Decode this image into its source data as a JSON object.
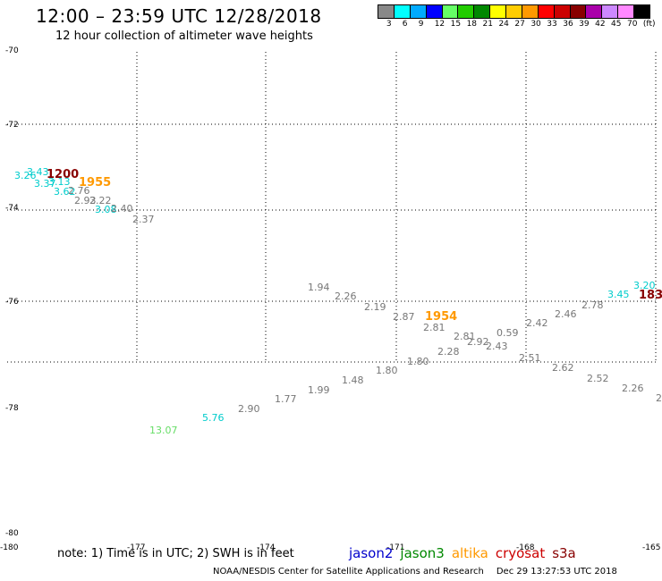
{
  "header": {
    "title": "12:00 – 23:59 UTC 12/28/2018",
    "subtitle": "12 hour collection of altimeter wave heights"
  },
  "scale": {
    "colors": [
      "#888888",
      "#00ffff",
      "#00aaff",
      "#0000ff",
      "#66ff66",
      "#22cc00",
      "#008800",
      "#ffff00",
      "#ffcc00",
      "#ff9900",
      "#ff0000",
      "#cc0000",
      "#880000",
      "#aa00aa",
      "#cc88ff",
      "#ff88ff",
      "#000000"
    ],
    "labels": [
      "3",
      "6",
      "9",
      "12",
      "15",
      "18",
      "21",
      "24",
      "27",
      "30",
      "33",
      "36",
      "39",
      "42",
      "45",
      "70",
      "(ft)"
    ]
  },
  "axes": {
    "lat_labels": [
      "-70",
      "-72",
      "-74",
      "-76",
      "-78",
      "-80"
    ],
    "lon_labels": [
      "-180",
      "-177",
      "-174",
      "-171",
      "-168",
      "-165"
    ]
  },
  "wave_heights": [
    {
      "v": "3.26",
      "c": "#00cccc"
    },
    {
      "v": "3.43",
      "c": "#00cccc"
    },
    {
      "v": "3.37",
      "c": "#00cccc"
    },
    {
      "v": "3.13",
      "c": "#00cccc"
    },
    {
      "v": "3.62",
      "c": "#00cccc"
    },
    {
      "v": "2.76",
      "c": "#777777"
    },
    {
      "v": "2.93",
      "c": "#777777"
    },
    {
      "v": "2.22",
      "c": "#777777"
    },
    {
      "v": "3.08",
      "c": "#00cccc"
    },
    {
      "v": "2.40",
      "c": "#777777"
    },
    {
      "v": "2.37",
      "c": "#777777"
    },
    {
      "v": "1.94",
      "c": "#777777"
    },
    {
      "v": "2.26",
      "c": "#777777"
    },
    {
      "v": "2.19",
      "c": "#777777"
    },
    {
      "v": "2.87",
      "c": "#777777"
    },
    {
      "v": "2.81",
      "c": "#777777"
    },
    {
      "v": "2.81",
      "c": "#777777"
    },
    {
      "v": "2.92",
      "c": "#777777"
    },
    {
      "v": "0.59",
      "c": "#777777"
    },
    {
      "v": "2.43",
      "c": "#777777"
    },
    {
      "v": "2.42",
      "c": "#777777"
    },
    {
      "v": "2.46",
      "c": "#777777"
    },
    {
      "v": "2.78",
      "c": "#777777"
    },
    {
      "v": "3.45",
      "c": "#00cccc"
    },
    {
      "v": "3.20",
      "c": "#00cccc"
    },
    {
      "v": "2.28",
      "c": "#777777"
    },
    {
      "v": "2.51",
      "c": "#777777"
    },
    {
      "v": "1.80",
      "c": "#777777"
    },
    {
      "v": "1.80",
      "c": "#777777"
    },
    {
      "v": "1.48",
      "c": "#777777"
    },
    {
      "v": "1.99",
      "c": "#777777"
    },
    {
      "v": "1.77",
      "c": "#777777"
    },
    {
      "v": "2.90",
      "c": "#777777"
    },
    {
      "v": "5.76",
      "c": "#00cccc"
    },
    {
      "v": "13.07",
      "c": "#66dd66"
    },
    {
      "v": "2.62",
      "c": "#777777"
    },
    {
      "v": "2.52",
      "c": "#777777"
    },
    {
      "v": "2.26",
      "c": "#777777"
    },
    {
      "v": "2",
      "c": "#777777"
    }
  ],
  "time_labels": [
    {
      "v": "1200",
      "c": "#880000"
    },
    {
      "v": "1955",
      "c": "#ff9900"
    },
    {
      "v": "1954",
      "c": "#ff9900"
    },
    {
      "v": "183",
      "c": "#880000"
    }
  ],
  "footer": {
    "note": "note: 1) Time is in UTC; 2) SWH is in feet",
    "satellites": [
      {
        "name": "jason2",
        "color": "#0000cc"
      },
      {
        "name": "jason3",
        "color": "#008800"
      },
      {
        "name": "altika",
        "color": "#ff9900"
      },
      {
        "name": "cryosat",
        "color": "#cc0000"
      },
      {
        "name": "s3a",
        "color": "#880000"
      }
    ],
    "credit": "NOAA/NESDIS Center for Satellite Applications and Research",
    "timestamp": "Dec 29 13:27:53 UTC 2018"
  }
}
